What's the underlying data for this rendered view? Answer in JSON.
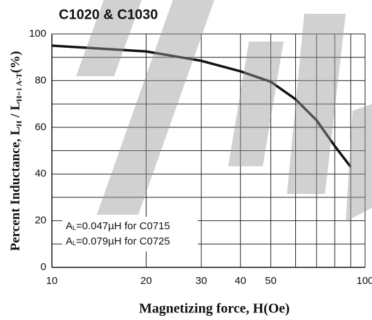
{
  "chart_data": {
    "type": "line",
    "title": "C1020 & C1030",
    "x_label": "Magnetizing force, H(Oe)",
    "y_label": [
      "Percent Inductance, L",
      "H",
      " / L",
      "H=1 A-T",
      "(%)"
    ],
    "x": [
      10,
      20,
      30,
      40,
      50,
      60,
      70,
      80,
      90
    ],
    "series": [
      {
        "color": "#111111",
        "values": [
          95,
          92.5,
          88.5,
          84,
          79.5,
          72,
          63,
          52,
          43
        ]
      }
    ],
    "xlim": [
      10,
      100
    ],
    "xscale": "log",
    "xticks": [
      10,
      20,
      30,
      40,
      50,
      100
    ],
    "xgrid_minor": [
      60,
      70,
      80,
      90
    ],
    "ylim": [
      0,
      100
    ],
    "yticks": [
      0,
      20,
      40,
      60,
      80,
      100
    ],
    "ygrid_minor": [
      10,
      30,
      50,
      70,
      90
    ],
    "grid": true,
    "annotations": [
      [
        "A",
        "L",
        "=0.047µH for C0715"
      ],
      [
        "A",
        "L",
        "=0.079µH for C0725"
      ]
    ]
  }
}
